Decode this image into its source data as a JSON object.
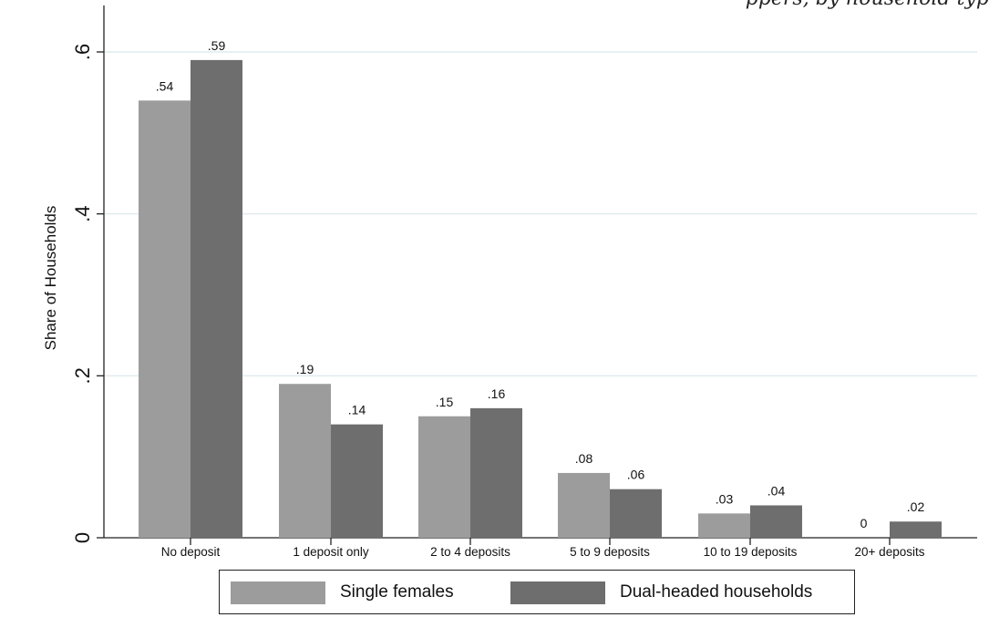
{
  "cropped_top_text": "ppers, by household typ",
  "chart_data": {
    "type": "bar",
    "title": "",
    "xlabel": "",
    "ylabel": "Share of Households",
    "ylim": [
      0,
      0.6
    ],
    "yticks": [
      0,
      0.2,
      0.4,
      0.6
    ],
    "ytick_labels": [
      "0",
      ".2",
      ".4",
      ".6"
    ],
    "grid": true,
    "legend_position": "bottom",
    "categories": [
      "No deposit",
      "1 deposit only",
      "2 to 4 deposits",
      "5 to 9 deposits",
      "10 to 19 deposits",
      "20+ deposits"
    ],
    "series": [
      {
        "name": "Single females",
        "color": "#9c9c9c",
        "values": [
          0.54,
          0.19,
          0.15,
          0.08,
          0.03,
          0
        ],
        "labels": [
          ".54",
          ".19",
          ".15",
          ".08",
          ".03",
          "0"
        ]
      },
      {
        "name": "Dual-headed households",
        "color": "#6e6e6e",
        "values": [
          0.59,
          0.14,
          0.16,
          0.06,
          0.04,
          0.02
        ],
        "labels": [
          ".59",
          ".14",
          ".16",
          ".06",
          ".04",
          ".02"
        ]
      }
    ]
  }
}
